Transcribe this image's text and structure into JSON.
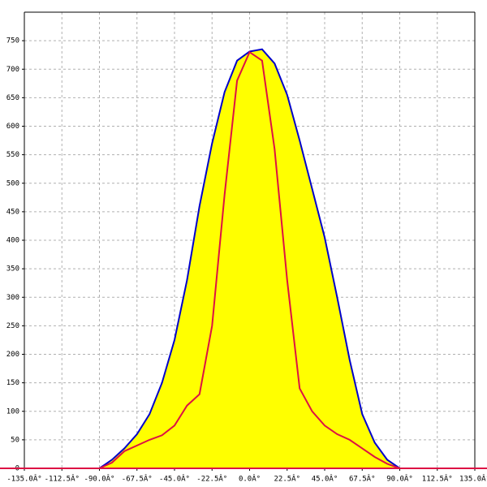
{
  "chart_data": {
    "type": "area-line",
    "x": [
      -93,
      -90,
      -82.5,
      -75,
      -67.5,
      -60,
      -52.5,
      -45,
      -37.5,
      -30,
      -22.5,
      -15,
      -7.5,
      0,
      7.5,
      15,
      22.5,
      30,
      37.5,
      45,
      52.5,
      60,
      67.5,
      75,
      82.5,
      90,
      93
    ],
    "series": [
      {
        "color": "#0000cc",
        "fill": "#ffff00",
        "values": [
          0,
          0,
          15,
          35,
          60,
          95,
          150,
          225,
          330,
          460,
          570,
          660,
          715,
          731,
          735,
          710,
          655,
          575,
          490,
          405,
          300,
          190,
          95,
          45,
          15,
          0,
          0
        ]
      },
      {
        "color": "#dd1144",
        "values": [
          null,
          0,
          10,
          30,
          40,
          50,
          58,
          75,
          110,
          130,
          250,
          480,
          680,
          730,
          715,
          560,
          330,
          140,
          100,
          75,
          60,
          50,
          35,
          20,
          8,
          0,
          null
        ]
      }
    ],
    "xlim": [
      -135,
      135
    ],
    "ylim": [
      0,
      800
    ],
    "xticks": [
      {
        "value": -135,
        "label": "-135.0Â°"
      },
      {
        "value": -112.5,
        "label": "-112.5Â°"
      },
      {
        "value": -90,
        "label": "-90.0Â°"
      },
      {
        "value": -67.5,
        "label": "-67.5Â°"
      },
      {
        "value": -45,
        "label": "-45.0Â°"
      },
      {
        "value": -22.5,
        "label": "-22.5Â°"
      },
      {
        "value": 0,
        "label": "0.0Â°"
      },
      {
        "value": 22.5,
        "label": "22.5Â°"
      },
      {
        "value": 45,
        "label": "45.0Â°"
      },
      {
        "value": 67.5,
        "label": "67.5Â°"
      },
      {
        "value": 90,
        "label": "90.0Â°"
      },
      {
        "value": 112.5,
        "label": "112.5Â°"
      },
      {
        "value": 135,
        "label": "135.0Â°"
      }
    ],
    "yticks": [
      0,
      50,
      100,
      150,
      200,
      250,
      300,
      350,
      400,
      450,
      500,
      550,
      600,
      650,
      700,
      750
    ],
    "grid": true
  }
}
